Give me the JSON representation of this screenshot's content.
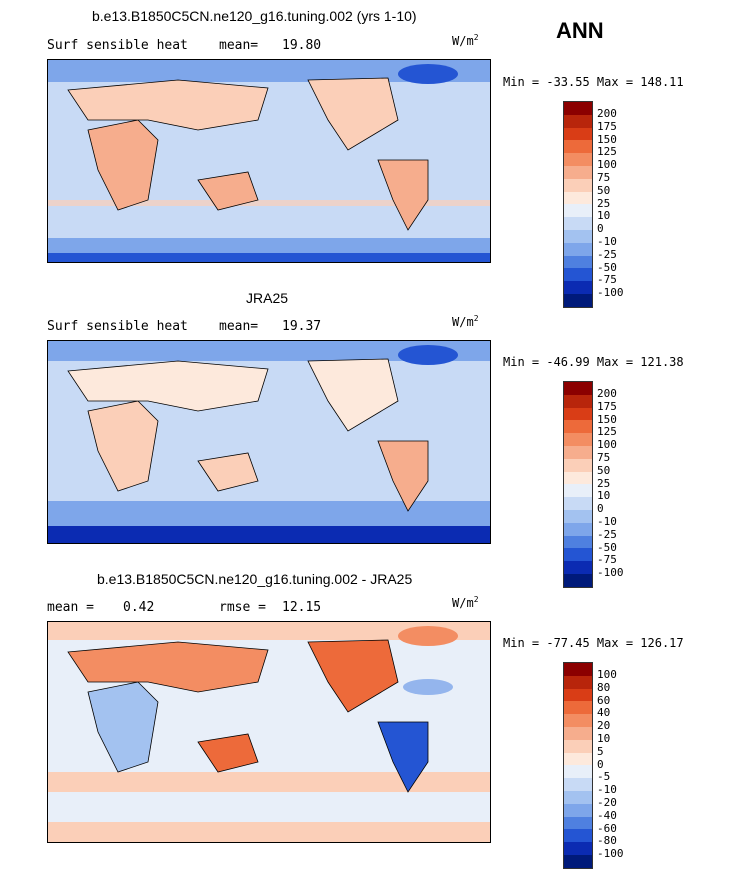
{
  "header": {
    "season": "ANN"
  },
  "panels": [
    {
      "title": "b.e13.B1850C5CN.ne120_g16.tuning.002 (yrs 1-10)",
      "left_label": "Surf sensible heat",
      "stat_label": "mean=",
      "stat_value": "19.80",
      "units": "W/m",
      "units_sup": "2",
      "minmax": "Min = -33.55 Max = 148.11",
      "levels": [
        "200",
        "175",
        "150",
        "125",
        "100",
        "75",
        "50",
        "25",
        "10",
        "0",
        "-10",
        "-25",
        "-50",
        "-75",
        "-100"
      ],
      "colors": [
        "#8b0000",
        "#b8250b",
        "#d93d16",
        "#ed6a3a",
        "#f38d62",
        "#f6ad8d",
        "#fbcfb8",
        "#fde9dc",
        "#e8eff9",
        "#c8daf5",
        "#a3c2f0",
        "#7ea6ea",
        "#4f80e0",
        "#2455d3",
        "#0b2bb2",
        "#001a7a"
      ]
    },
    {
      "title": "JRA25",
      "left_label": "Surf sensible heat",
      "stat_label": "mean=",
      "stat_value": "19.37",
      "units": "W/m",
      "units_sup": "2",
      "minmax": "Min = -46.99 Max = 121.38",
      "levels": [
        "200",
        "175",
        "150",
        "125",
        "100",
        "75",
        "50",
        "25",
        "10",
        "0",
        "-10",
        "-25",
        "-50",
        "-75",
        "-100"
      ],
      "colors": [
        "#8b0000",
        "#b8250b",
        "#d93d16",
        "#ed6a3a",
        "#f38d62",
        "#f6ad8d",
        "#fbcfb8",
        "#fde9dc",
        "#e8eff9",
        "#c8daf5",
        "#a3c2f0",
        "#7ea6ea",
        "#4f80e0",
        "#2455d3",
        "#0b2bb2",
        "#001a7a"
      ]
    },
    {
      "title": "b.e13.B1850C5CN.ne120_g16.tuning.002 - JRA25",
      "left_label": "mean =",
      "left_value": "0.42",
      "stat_label": "rmse =",
      "stat_value": "12.15",
      "units": "W/m",
      "units_sup": "2",
      "minmax": "Min = -77.45 Max = 126.17",
      "levels": [
        "100",
        "80",
        "60",
        "40",
        "20",
        "10",
        "5",
        "0",
        "-5",
        "-10",
        "-20",
        "-40",
        "-60",
        "-80",
        "-100"
      ],
      "colors": [
        "#8b0000",
        "#b8250b",
        "#d93d16",
        "#ed6a3a",
        "#f38d62",
        "#f6ad8d",
        "#fbcfb8",
        "#fde9dc",
        "#e8eff9",
        "#c8daf5",
        "#a3c2f0",
        "#7ea6ea",
        "#4f80e0",
        "#2455d3",
        "#0b2bb2",
        "#001a7a"
      ]
    }
  ],
  "chart_data": [
    {
      "type": "heatmap",
      "title": "b.e13.B1850C5CN.ne120_g16.tuning.002 (yrs 1-10)",
      "variable": "Surf sensible heat",
      "units": "W/m2",
      "mean": 19.8,
      "min": -33.55,
      "max": 148.11,
      "contour_levels": [
        200,
        175,
        150,
        125,
        100,
        75,
        50,
        25,
        10,
        0,
        -10,
        -25,
        -50,
        -75,
        -100
      ]
    },
    {
      "type": "heatmap",
      "title": "JRA25",
      "variable": "Surf sensible heat",
      "units": "W/m2",
      "mean": 19.37,
      "min": -46.99,
      "max": 121.38,
      "contour_levels": [
        200,
        175,
        150,
        125,
        100,
        75,
        50,
        25,
        10,
        0,
        -10,
        -25,
        -50,
        -75,
        -100
      ]
    },
    {
      "type": "heatmap",
      "title": "b.e13.B1850C5CN.ne120_g16.tuning.002 - JRA25",
      "units": "W/m2",
      "mean": 0.42,
      "rmse": 12.15,
      "min": -77.45,
      "max": 126.17,
      "contour_levels": [
        100,
        80,
        60,
        40,
        20,
        10,
        5,
        0,
        -5,
        -10,
        -20,
        -40,
        -60,
        -80,
        -100
      ]
    }
  ]
}
